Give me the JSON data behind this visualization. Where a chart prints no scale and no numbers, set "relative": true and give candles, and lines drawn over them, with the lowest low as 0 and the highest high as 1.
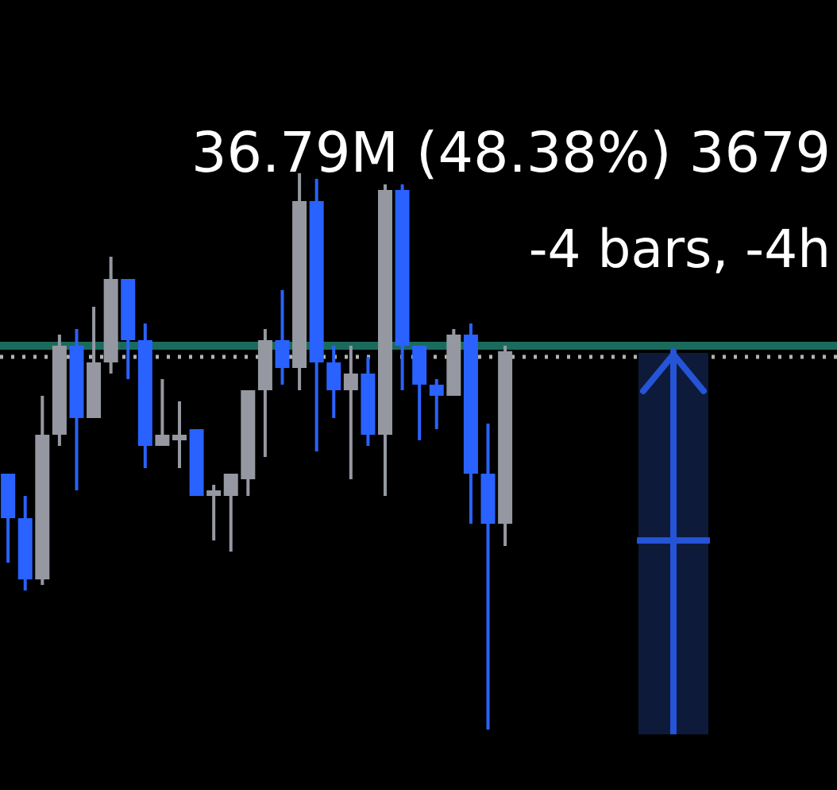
{
  "chart_data": {
    "type": "candlestick",
    "relative": true,
    "legend": false,
    "categories": [
      null,
      null,
      null,
      null,
      null,
      null,
      null,
      null,
      null,
      null,
      null,
      null,
      null,
      null,
      null,
      null,
      null,
      null,
      null,
      null,
      null,
      null,
      null,
      null,
      null,
      null,
      null,
      null,
      null,
      null
    ],
    "ohlc": [
      [
        0.46,
        0.46,
        0.3,
        0.38
      ],
      [
        0.38,
        0.42,
        0.25,
        0.27
      ],
      [
        0.27,
        0.6,
        0.26,
        0.53
      ],
      [
        0.53,
        0.71,
        0.51,
        0.69
      ],
      [
        0.69,
        0.72,
        0.43,
        0.56
      ],
      [
        0.56,
        0.76,
        0.56,
        0.66
      ],
      [
        0.66,
        0.85,
        0.64,
        0.81
      ],
      [
        0.81,
        0.81,
        0.63,
        0.7
      ],
      [
        0.7,
        0.73,
        0.47,
        0.51
      ],
      [
        0.51,
        0.63,
        0.51,
        0.53
      ],
      [
        0.52,
        0.59,
        0.47,
        0.53
      ],
      [
        0.54,
        0.54,
        0.42,
        0.42
      ],
      [
        0.42,
        0.44,
        0.34,
        0.43
      ],
      [
        0.42,
        0.46,
        0.32,
        0.46
      ],
      [
        0.45,
        0.61,
        0.42,
        0.61
      ],
      [
        0.61,
        0.72,
        0.49,
        0.7
      ],
      [
        0.7,
        0.79,
        0.62,
        0.65
      ],
      [
        0.65,
        1,
        0.61,
        0.95
      ],
      [
        0.95,
        0.99,
        0.5,
        0.66
      ],
      [
        0.66,
        0.69,
        0.56,
        0.61
      ],
      [
        0.61,
        0.69,
        0.45,
        0.64
      ],
      [
        0.64,
        0.67,
        0.51,
        0.53
      ],
      [
        0.53,
        0.98,
        0.42,
        0.97
      ],
      [
        0.97,
        0.98,
        0.61,
        0.69
      ],
      [
        0.69,
        0.69,
        0.52,
        0.62
      ],
      [
        0.62,
        0.63,
        0.54,
        0.6
      ],
      [
        0.6,
        0.72,
        0.6,
        0.71
      ],
      [
        0.71,
        0.73,
        0.37,
        0.46
      ],
      [
        0.46,
        0.55,
        0,
        0.37
      ],
      [
        0.37,
        0.69,
        0.33,
        0.68
      ]
    ],
    "colors": [
      "#2962ff",
      "#2962ff",
      "#9598a1",
      "#9598a1",
      "#2962ff",
      "#9598a1",
      "#9598a1",
      "#2962ff",
      "#2962ff",
      "#9598a1",
      "#9598a1",
      "#2962ff",
      "#9598a1",
      "#9598a1",
      "#9598a1",
      "#9598a1",
      "#2962ff",
      "#9598a1",
      "#2962ff",
      "#2962ff",
      "#9598a1",
      "#2962ff",
      "#9598a1",
      "#2962ff",
      "#2962ff",
      "#2962ff",
      "#9598a1",
      "#2962ff",
      "#2962ff",
      "#9598a1"
    ],
    "ref_lines": [
      {
        "axis": "y",
        "value": 0.69,
        "label": null,
        "color": "#1b6b5c",
        "line_style": "solid"
      },
      {
        "axis": "y",
        "value": 0.67,
        "label": null,
        "color": "#b4b4b4",
        "line_style": "dotted"
      }
    ],
    "annotations": [
      "36.79M (48.38%) 3679",
      "-4 bars, -4h"
    ]
  }
}
